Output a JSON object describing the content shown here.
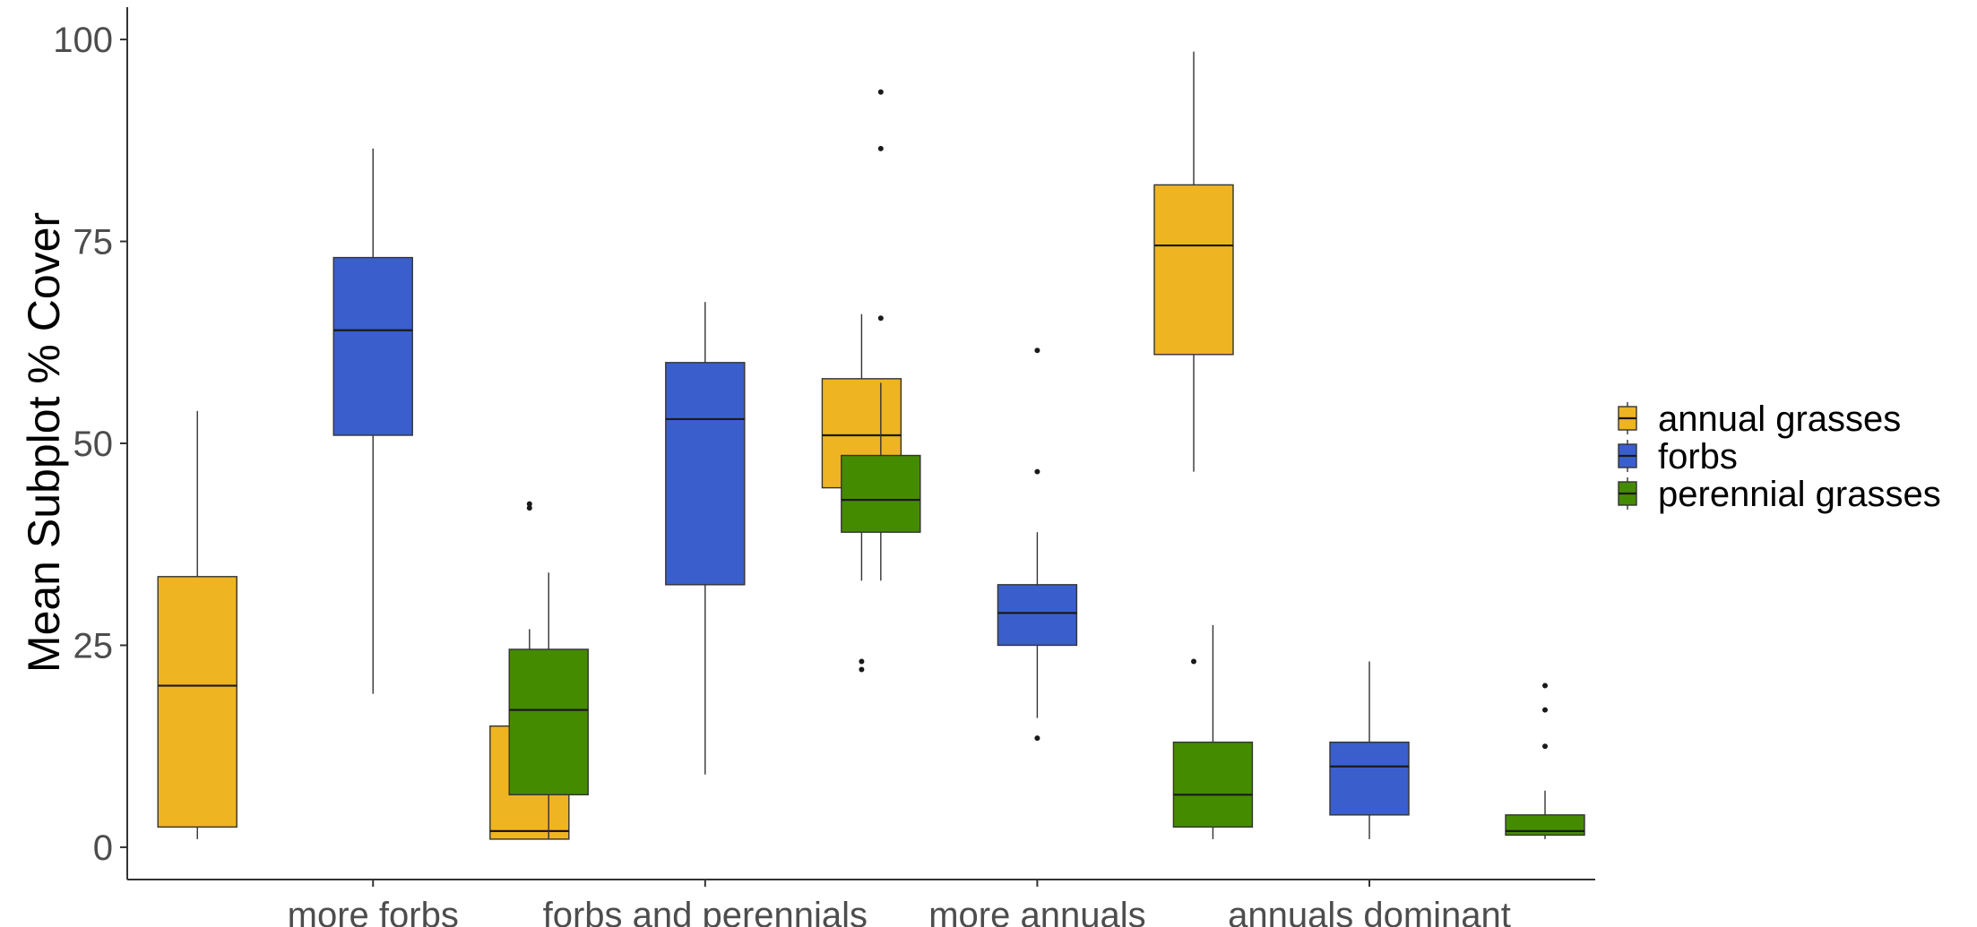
{
  "chart_data": {
    "type": "boxplot",
    "title": "",
    "xlabel": "",
    "ylabel": "Mean Subplot % Cover",
    "ylim": [
      -4,
      104
    ],
    "yticks": [
      0,
      25,
      50,
      75,
      100
    ],
    "grid": false,
    "legend_position": "right",
    "categories": [
      "more forbs",
      "forbs and perennials",
      "more annuals",
      "annuals dominant"
    ],
    "series": [
      {
        "name": "annual grasses",
        "color": "#EEB422",
        "boxes": [
          {
            "whisker_low": 1,
            "q1": 2.5,
            "median": 20,
            "q3": 33.5,
            "whisker_high": 54,
            "outliers": []
          },
          {
            "whisker_low": 1,
            "q1": 1,
            "median": 2,
            "q3": 15,
            "whisker_high": 27,
            "outliers": [
              42,
              42.5
            ]
          },
          {
            "whisker_low": 33,
            "q1": 44.5,
            "median": 51,
            "q3": 58,
            "whisker_high": 66,
            "outliers": [
              22,
              23
            ]
          },
          {
            "whisker_low": 46.5,
            "q1": 61,
            "median": 74.5,
            "q3": 82,
            "whisker_high": 98.5,
            "outliers": [
              23
            ]
          }
        ]
      },
      {
        "name": "forbs",
        "color": "#3A5FCD",
        "boxes": [
          {
            "whisker_low": 19,
            "q1": 51,
            "median": 64,
            "q3": 73,
            "whisker_high": 86.5,
            "outliers": []
          },
          {
            "whisker_low": 9,
            "q1": 32.5,
            "median": 53,
            "q3": 60,
            "whisker_high": 67.5,
            "outliers": []
          },
          {
            "whisker_low": 16,
            "q1": 25,
            "median": 29,
            "q3": 32.5,
            "whisker_high": 39,
            "outliers": [
              13.5,
              46.5,
              61.5
            ]
          },
          {
            "whisker_low": 1,
            "q1": 4,
            "median": 10,
            "q3": 13,
            "whisker_high": 23,
            "outliers": []
          }
        ]
      },
      {
        "name": "perennial grasses",
        "color": "#458B00",
        "boxes": [
          {
            "whisker_low": 1,
            "q1": 6.5,
            "median": 17,
            "q3": 24.5,
            "whisker_high": 34,
            "outliers": []
          },
          {
            "whisker_low": 33,
            "q1": 39,
            "median": 43,
            "q3": 48.5,
            "whisker_high": 57.5,
            "outliers": [
              65.5,
              86.5,
              93.5
            ]
          },
          {
            "whisker_low": 1,
            "q1": 2.5,
            "median": 6.5,
            "q3": 13,
            "whisker_high": 27.5,
            "outliers": []
          },
          {
            "whisker_low": 1,
            "q1": 1.5,
            "median": 2,
            "q3": 4,
            "whisker_high": 7,
            "outliers": [
              12.5,
              17,
              20
            ]
          }
        ]
      }
    ]
  }
}
